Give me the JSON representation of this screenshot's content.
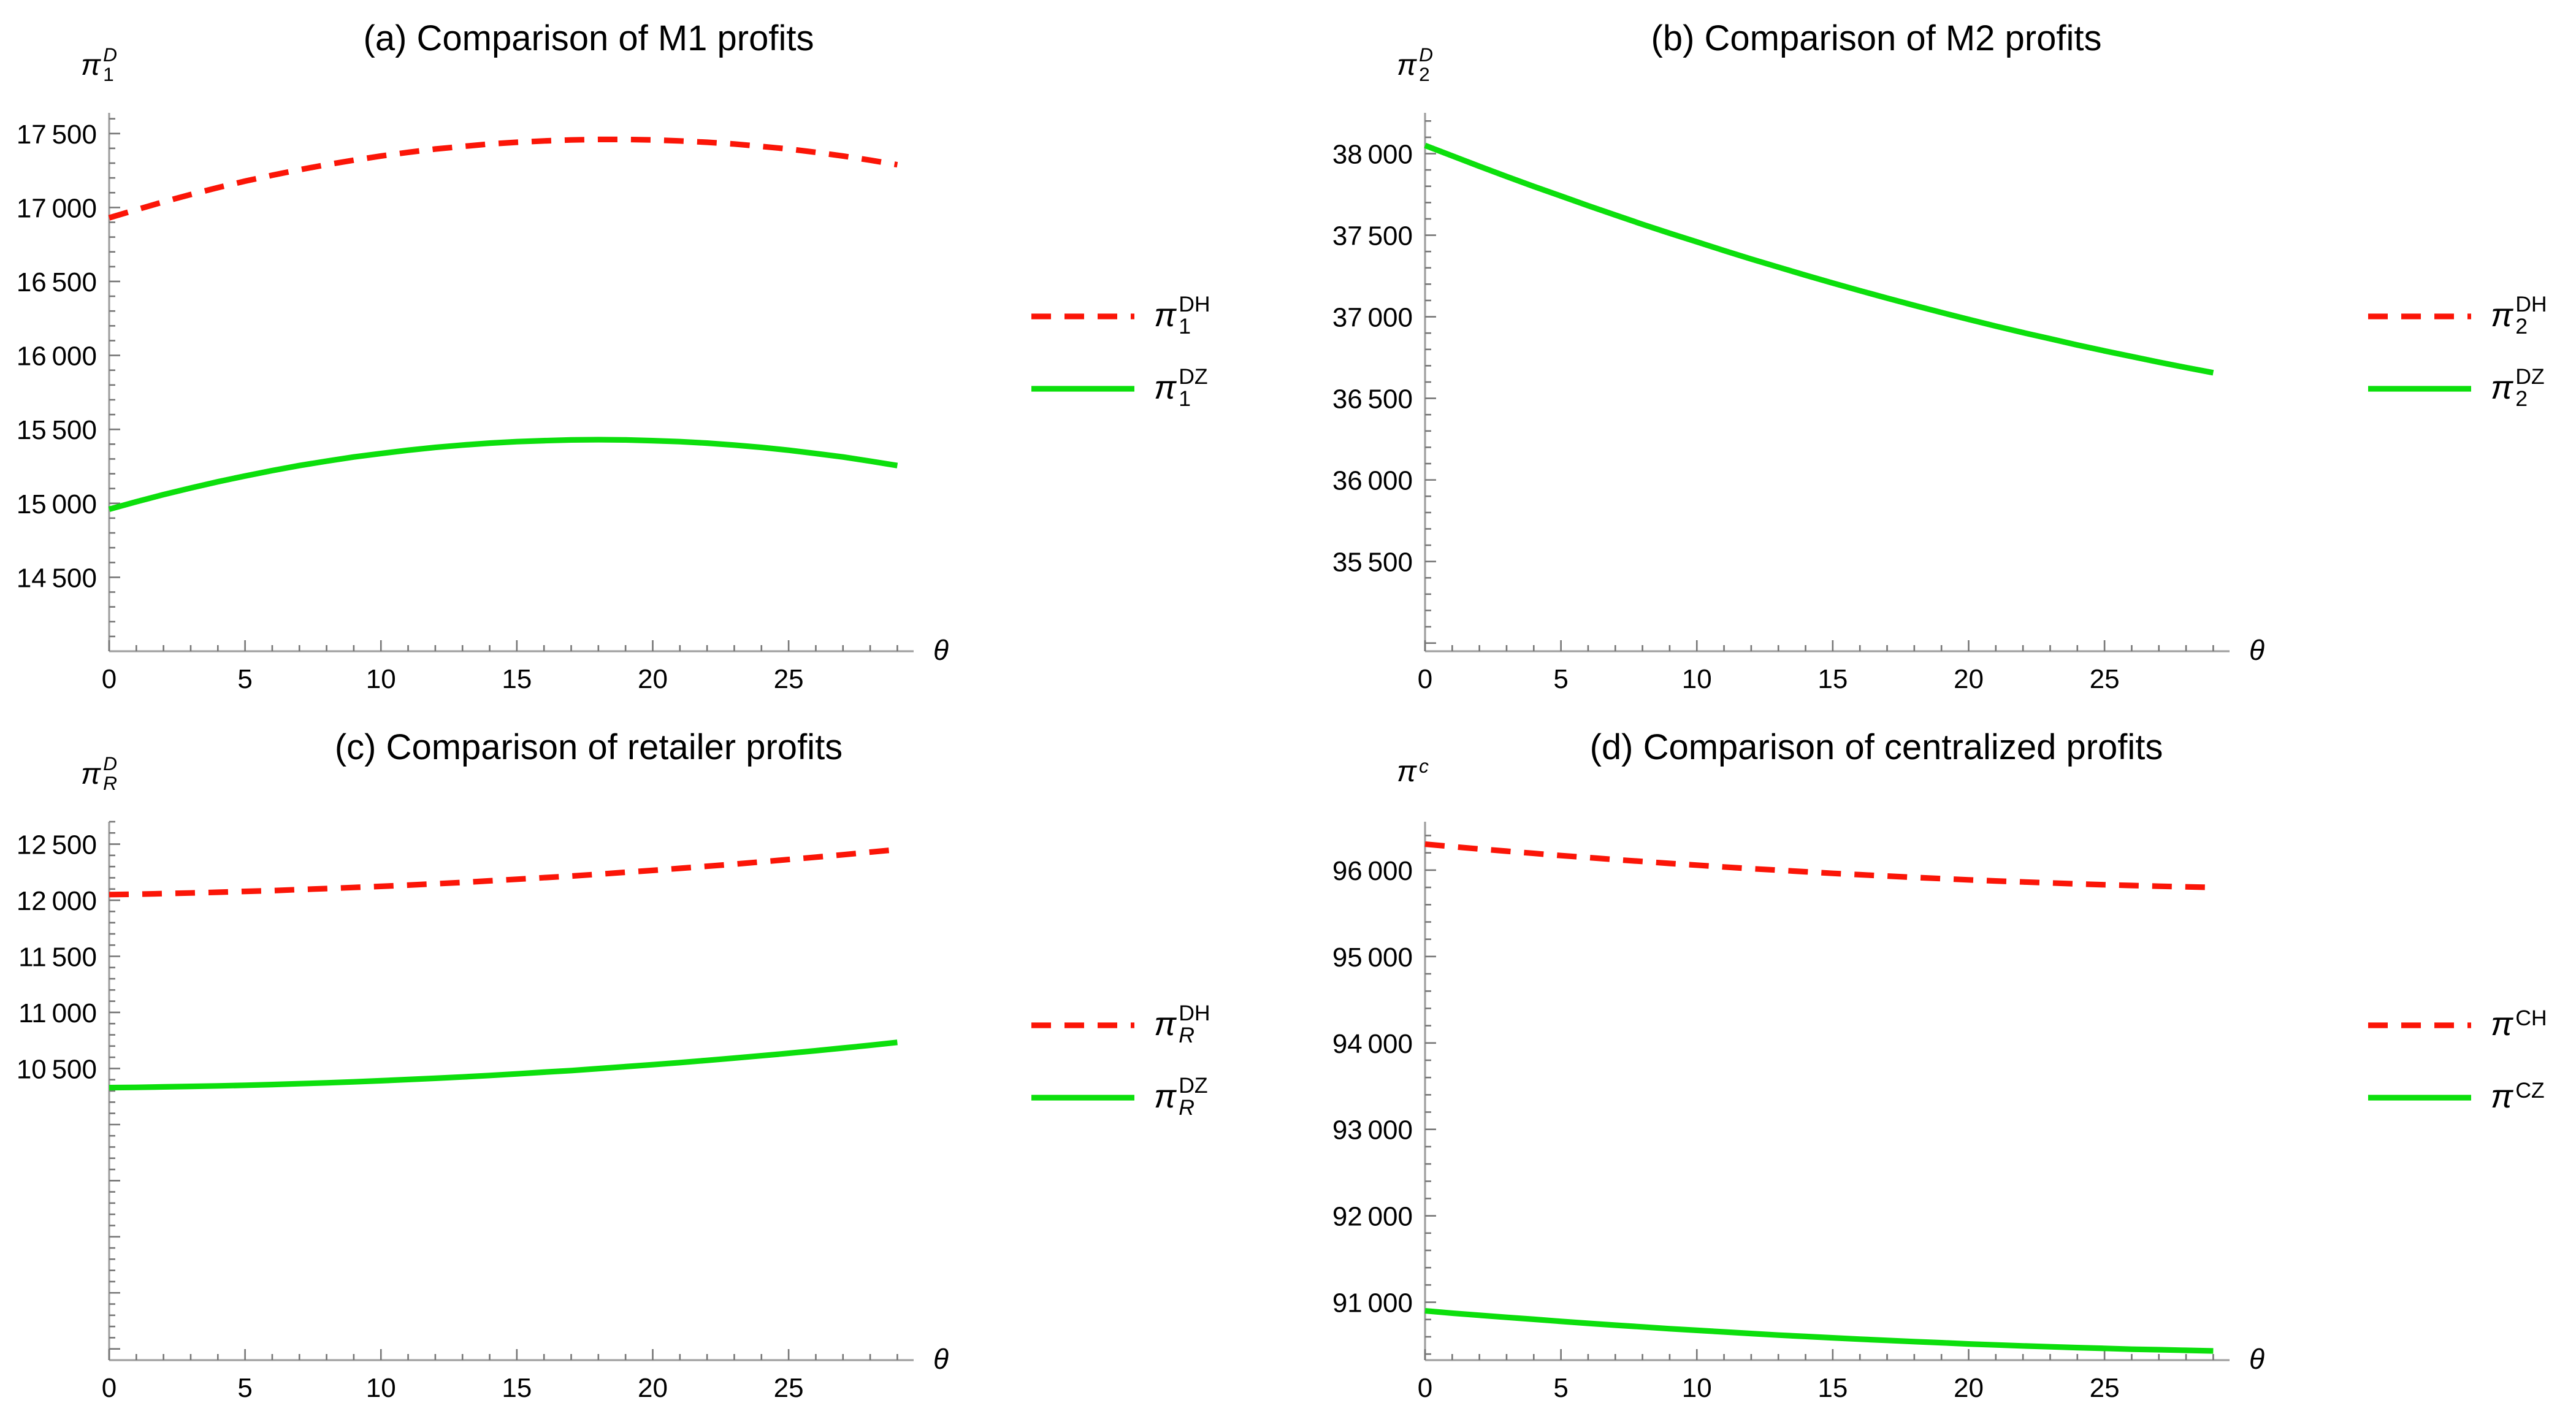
{
  "figure": {
    "background": "#ffffff",
    "text_color": "#000000",
    "axis_color": "#a0a0a0",
    "tick_color": "#767676",
    "red_dashed_color": "#fb1507",
    "green_solid_color": "#0cdf0c",
    "panel_grid": "2x2"
  },
  "chart_data": [
    {
      "id": "a",
      "type": "line",
      "title": "(a) Comparison of M1 profits",
      "xlabel": "θ",
      "ylabel": {
        "base": "π",
        "sub": "1",
        "sup": "D",
        "sub_italic": false,
        "sup_italic": true
      },
      "x": [
        0,
        1,
        2,
        3,
        4,
        5,
        6,
        7,
        8,
        9,
        10,
        11,
        12,
        13,
        14,
        15,
        16,
        17,
        18,
        19,
        20,
        21,
        22,
        23,
        24,
        25,
        26,
        27,
        28,
        29
      ],
      "x_ticks": [
        0,
        5,
        10,
        15,
        20,
        25
      ],
      "x_minor_step": 1,
      "xlim": [
        0,
        29.6
      ],
      "y_ticks": [
        14500,
        15000,
        15500,
        16000,
        16500,
        17000,
        17500
      ],
      "y_minor_step": 100,
      "ylim": [
        14000,
        17640
      ],
      "legend_position": "right-center",
      "series": [
        {
          "name": {
            "base": "π",
            "sub": "1",
            "sup": "DH",
            "sub_italic": false,
            "sup_italic": false
          },
          "color": "#fb1507",
          "style": "dashed",
          "visible_in_plot": true,
          "y": [
            16930,
            16985,
            17038,
            17088,
            17134,
            17178,
            17218,
            17255,
            17289,
            17320,
            17348,
            17373,
            17395,
            17413,
            17429,
            17441,
            17450,
            17457,
            17460,
            17460,
            17457,
            17450,
            17441,
            17429,
            17413,
            17395,
            17373,
            17348,
            17320,
            17289
          ]
        },
        {
          "name": {
            "base": "π",
            "sub": "1",
            "sup": "DZ",
            "sub_italic": false,
            "sup_italic": false
          },
          "color": "#0cdf0c",
          "style": "solid",
          "visible_in_plot": true,
          "y": [
            14960,
            15011,
            15059,
            15104,
            15146,
            15185,
            15221,
            15255,
            15285,
            15313,
            15337,
            15359,
            15378,
            15394,
            15407,
            15417,
            15424,
            15429,
            15430,
            15429,
            15424,
            15417,
            15407,
            15394,
            15378,
            15359,
            15337,
            15313,
            15285,
            15255
          ]
        }
      ]
    },
    {
      "id": "b",
      "type": "line",
      "title": "(b) Comparison of M2 profits",
      "xlabel": "θ",
      "ylabel": {
        "base": "π",
        "sub": "2",
        "sup": "D",
        "sub_italic": false,
        "sup_italic": true
      },
      "x": [
        0,
        1,
        2,
        3,
        4,
        5,
        6,
        7,
        8,
        9,
        10,
        11,
        12,
        13,
        14,
        15,
        16,
        17,
        18,
        19,
        20,
        21,
        22,
        23,
        24,
        25,
        26,
        27,
        28,
        29
      ],
      "x_ticks": [
        0,
        5,
        10,
        15,
        20,
        25
      ],
      "x_minor_step": 1,
      "xlim": [
        0,
        29.6
      ],
      "y_ticks": [
        35500,
        36000,
        36500,
        37000,
        37500,
        38000
      ],
      "y_minor_step": 100,
      "ylim": [
        34950,
        38250
      ],
      "legend_position": "right-center",
      "series": [
        {
          "name": {
            "base": "π",
            "sub": "2",
            "sup": "DH",
            "sub_italic": false,
            "sup_italic": false
          },
          "color": "#fb1507",
          "style": "dashed",
          "visible_in_plot": false,
          "y": []
        },
        {
          "name": {
            "base": "π",
            "sub": "2",
            "sup": "DZ",
            "sub_italic": false,
            "sup_italic": false
          },
          "color": "#0cdf0c",
          "style": "solid",
          "visible_in_plot": true,
          "y": [
            38050,
            37986,
            37922,
            37860,
            37799,
            37740,
            37681,
            37624,
            37567,
            37512,
            37459,
            37406,
            37354,
            37304,
            37255,
            37207,
            37160,
            37114,
            37070,
            37026,
            36984,
            36943,
            36903,
            36865,
            36827,
            36791,
            36756,
            36722,
            36689,
            36657
          ]
        }
      ]
    },
    {
      "id": "c",
      "type": "line",
      "title": "(c) Comparison of retailer profits",
      "xlabel": "θ",
      "ylabel": {
        "base": "π",
        "sub": "R",
        "sup": "D",
        "sub_italic": true,
        "sup_italic": true
      },
      "x": [
        0,
        1,
        2,
        3,
        4,
        5,
        6,
        7,
        8,
        9,
        10,
        11,
        12,
        13,
        14,
        15,
        16,
        17,
        18,
        19,
        20,
        21,
        22,
        23,
        24,
        25,
        26,
        27,
        28,
        29
      ],
      "x_ticks": [
        0,
        5,
        10,
        15,
        20,
        25
      ],
      "x_minor_step": 1,
      "xlim": [
        0,
        29.6
      ],
      "y_ticks": [
        10500,
        11000,
        11500,
        12000,
        12500
      ],
      "y_minor_step": 100,
      "ylim": [
        7900,
        12700
      ],
      "legend_position": "right-center",
      "series": [
        {
          "name": {
            "base": "π",
            "sub": "R",
            "sup": "DH",
            "sub_italic": true,
            "sup_italic": false
          },
          "color": "#fb1507",
          "style": "dashed",
          "visible_in_plot": true,
          "y": [
            12050,
            12054,
            12059,
            12065,
            12071,
            12079,
            12086,
            12095,
            12104,
            12114,
            12124,
            12135,
            12147,
            12159,
            12173,
            12187,
            12201,
            12216,
            12232,
            12249,
            12266,
            12284,
            12303,
            12322,
            12342,
            12363,
            12384,
            12406,
            12429,
            12452
          ]
        },
        {
          "name": {
            "base": "π",
            "sub": "R",
            "sup": "DZ",
            "sub_italic": true,
            "sup_italic": false
          },
          "color": "#0cdf0c",
          "style": "solid",
          "visible_in_plot": true,
          "y": [
            10330,
            10332,
            10336,
            10340,
            10345,
            10350,
            10357,
            10364,
            10372,
            10381,
            10391,
            10402,
            10413,
            10425,
            10438,
            10452,
            10467,
            10482,
            10499,
            10516,
            10534,
            10553,
            10572,
            10593,
            10614,
            10636,
            10659,
            10683,
            10707,
            10733
          ]
        }
      ]
    },
    {
      "id": "d",
      "type": "line",
      "title": "(d) Comparison of centralized profits",
      "xlabel": "θ",
      "ylabel": {
        "base": "π",
        "sub": "",
        "sup": "c",
        "sub_italic": false,
        "sup_italic": true
      },
      "x": [
        0,
        1,
        2,
        3,
        4,
        5,
        6,
        7,
        8,
        9,
        10,
        11,
        12,
        13,
        14,
        15,
        16,
        17,
        18,
        19,
        20,
        21,
        22,
        23,
        24,
        25,
        26,
        27,
        28,
        29
      ],
      "x_ticks": [
        0,
        5,
        10,
        15,
        20,
        25
      ],
      "x_minor_step": 1,
      "xlim": [
        0,
        29.6
      ],
      "y_ticks": [
        91000,
        92000,
        93000,
        94000,
        95000,
        96000
      ],
      "y_minor_step": 200,
      "ylim": [
        90330,
        96560
      ],
      "legend_position": "right-center",
      "series": [
        {
          "name": {
            "base": "π",
            "sub": "",
            "sup": "CH",
            "sub_italic": false,
            "sup_italic": false
          },
          "color": "#fb1507",
          "style": "dashed",
          "visible_in_plot": true,
          "y": [
            96300,
            96272,
            96245,
            96219,
            96194,
            96169,
            96145,
            96122,
            96100,
            96078,
            96057,
            96037,
            96017,
            95999,
            95981,
            95963,
            95947,
            95931,
            95916,
            95902,
            95888,
            95875,
            95863,
            95852,
            95841,
            95831,
            95822,
            95814,
            95806,
            95799
          ]
        },
        {
          "name": {
            "base": "π",
            "sub": "",
            "sup": "CZ",
            "sub_italic": false,
            "sup_italic": false
          },
          "color": "#0cdf0c",
          "style": "solid",
          "visible_in_plot": true,
          "y": [
            90900,
            90874,
            90849,
            90825,
            90802,
            90779,
            90756,
            90735,
            90714,
            90694,
            90675,
            90656,
            90638,
            90620,
            90604,
            90588,
            90572,
            90558,
            90544,
            90531,
            90518,
            90506,
            90495,
            90485,
            90475,
            90466,
            90457,
            90450,
            90443,
            90436
          ]
        }
      ]
    }
  ]
}
